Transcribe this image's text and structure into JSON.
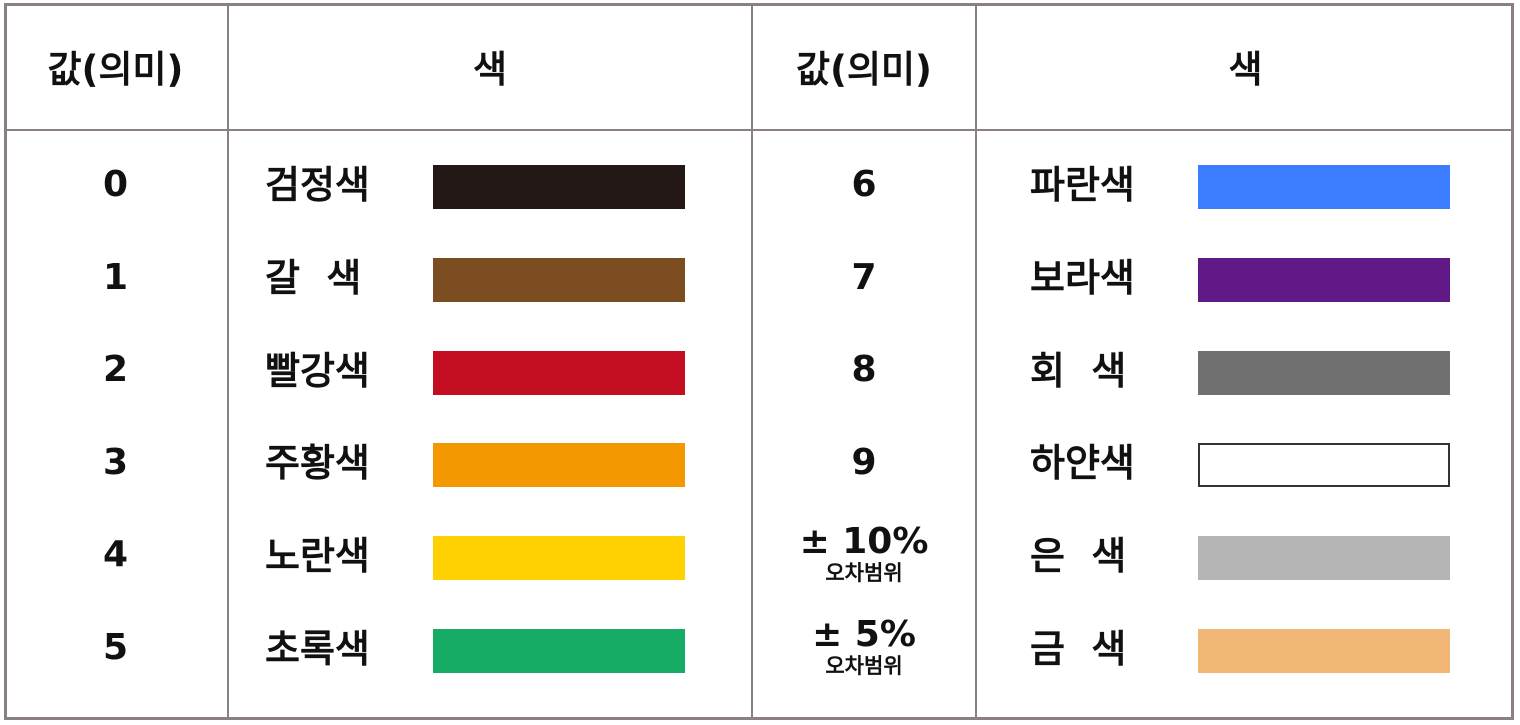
{
  "headers": [
    "값(의미)",
    "색",
    "값(의미)",
    "색"
  ],
  "left": [
    {
      "value": "0",
      "name": "검정색",
      "color": "#231815"
    },
    {
      "value": "1",
      "name": "갈  색",
      "color": "#7b4d21"
    },
    {
      "value": "2",
      "name": "빨강색",
      "color": "#c20e20"
    },
    {
      "value": "3",
      "name": "주황색",
      "color": "#f39800"
    },
    {
      "value": "4",
      "name": "노란색",
      "color": "#ffd100"
    },
    {
      "value": "5",
      "name": "초록색",
      "color": "#17ac65"
    }
  ],
  "right": [
    {
      "value": "6",
      "sub": "",
      "name": "파란색",
      "color": "#3c7cff"
    },
    {
      "value": "7",
      "sub": "",
      "name": "보라색",
      "color": "#601986"
    },
    {
      "value": "8",
      "sub": "",
      "name": "회  색",
      "color": "#717071"
    },
    {
      "value": "9",
      "sub": "",
      "name": "하얀색",
      "color": "#ffffff"
    },
    {
      "value": "± 10%",
      "sub": "오차범위",
      "name": "은  색",
      "color": "#b5b5b5"
    },
    {
      "value": "± 5%",
      "sub": "오차범위",
      "name": "금  색",
      "color": "#f2b677"
    }
  ]
}
